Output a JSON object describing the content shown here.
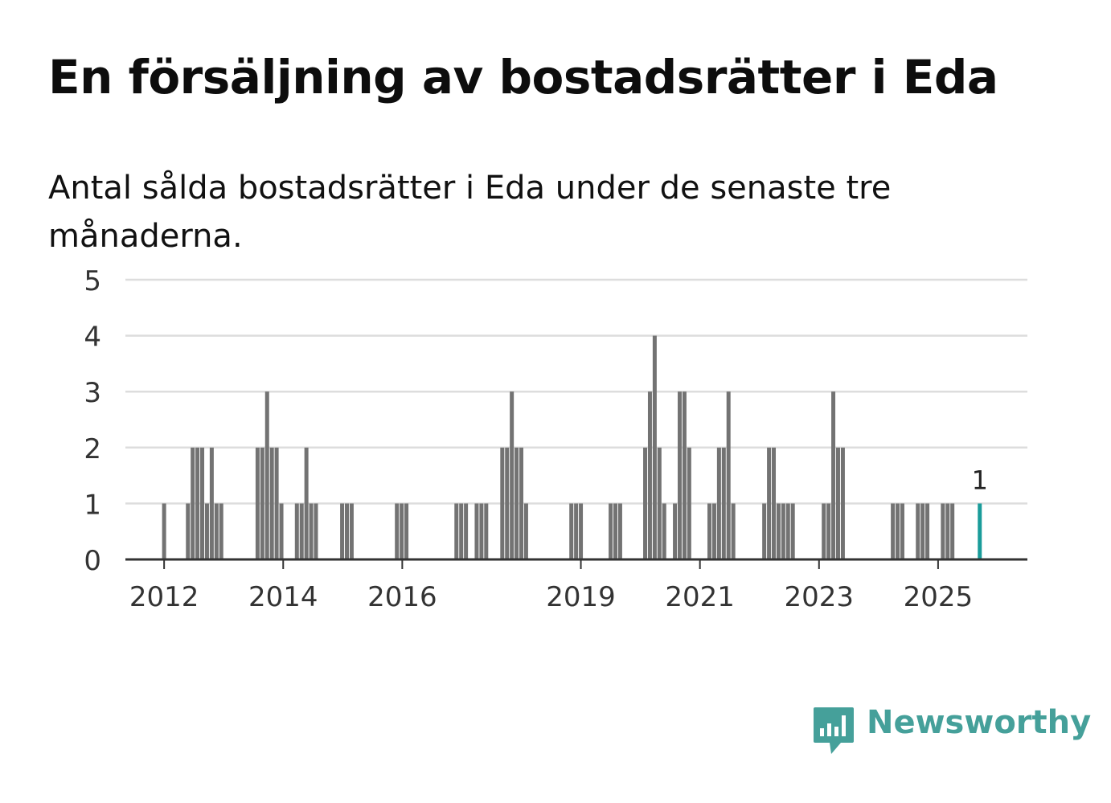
{
  "title": "En försäljning av bostadsrätter i Eda",
  "subtitle": "Antal sålda bostadsrätter i Eda under de senaste tre månaderna.",
  "brand": {
    "name": "Newsworthy",
    "color": "#45a09a",
    "icon": "newsworthy-logo-icon"
  },
  "colors": {
    "bar": "#737373",
    "highlight": "#1a9c9a",
    "grid": "#dddddd",
    "axis": "#333333"
  },
  "chart_data": {
    "type": "bar",
    "title": "En försäljning av bostadsrätter i Eda",
    "subtitle": "Antal sålda bostadsrätter i Eda under de senaste tre månaderna.",
    "xlabel": "",
    "ylabel": "",
    "ylim": [
      0,
      5
    ],
    "yticks": [
      0,
      1,
      2,
      3,
      4,
      5
    ],
    "xlim": [
      2011.35,
      2026.5
    ],
    "xticks": [
      {
        "label": "2012",
        "x": 2012.0
      },
      {
        "label": "2014",
        "x": 2014.0
      },
      {
        "label": "2016",
        "x": 2016.0
      },
      {
        "label": "2019",
        "x": 2019.0
      },
      {
        "label": "2021",
        "x": 2021.0
      },
      {
        "label": "2023",
        "x": 2023.0
      },
      {
        "label": "2025",
        "x": 2025.0
      }
    ],
    "grid": true,
    "series": [
      {
        "name": "Sålda bostadsrätter",
        "points": [
          {
            "x": 2012.0,
            "y": 1
          },
          {
            "x": 2012.4,
            "y": 1
          },
          {
            "x": 2012.48,
            "y": 2
          },
          {
            "x": 2012.56,
            "y": 2
          },
          {
            "x": 2012.64,
            "y": 2
          },
          {
            "x": 2012.72,
            "y": 1
          },
          {
            "x": 2012.8,
            "y": 2
          },
          {
            "x": 2012.88,
            "y": 1
          },
          {
            "x": 2012.96,
            "y": 1
          },
          {
            "x": 2013.57,
            "y": 2
          },
          {
            "x": 2013.65,
            "y": 2
          },
          {
            "x": 2013.73,
            "y": 3
          },
          {
            "x": 2013.81,
            "y": 2
          },
          {
            "x": 2013.89,
            "y": 2
          },
          {
            "x": 2013.97,
            "y": 1
          },
          {
            "x": 2014.23,
            "y": 1
          },
          {
            "x": 2014.31,
            "y": 1
          },
          {
            "x": 2014.39,
            "y": 2
          },
          {
            "x": 2014.47,
            "y": 1
          },
          {
            "x": 2014.55,
            "y": 1
          },
          {
            "x": 2014.99,
            "y": 1
          },
          {
            "x": 2015.07,
            "y": 1
          },
          {
            "x": 2015.15,
            "y": 1
          },
          {
            "x": 2015.91,
            "y": 1
          },
          {
            "x": 2015.99,
            "y": 1
          },
          {
            "x": 2016.07,
            "y": 1
          },
          {
            "x": 2016.91,
            "y": 1
          },
          {
            "x": 2016.99,
            "y": 1
          },
          {
            "x": 2017.07,
            "y": 1
          },
          {
            "x": 2017.25,
            "y": 1
          },
          {
            "x": 2017.33,
            "y": 1
          },
          {
            "x": 2017.41,
            "y": 1
          },
          {
            "x": 2017.68,
            "y": 2
          },
          {
            "x": 2017.76,
            "y": 2
          },
          {
            "x": 2017.84,
            "y": 3
          },
          {
            "x": 2017.92,
            "y": 2
          },
          {
            "x": 2018.0,
            "y": 2
          },
          {
            "x": 2018.08,
            "y": 1
          },
          {
            "x": 2018.84,
            "y": 1
          },
          {
            "x": 2018.92,
            "y": 1
          },
          {
            "x": 2019.0,
            "y": 1
          },
          {
            "x": 2019.5,
            "y": 1
          },
          {
            "x": 2019.58,
            "y": 1
          },
          {
            "x": 2019.66,
            "y": 1
          },
          {
            "x": 2020.08,
            "y": 2
          },
          {
            "x": 2020.16,
            "y": 3
          },
          {
            "x": 2020.24,
            "y": 4
          },
          {
            "x": 2020.32,
            "y": 2
          },
          {
            "x": 2020.4,
            "y": 1
          },
          {
            "x": 2020.58,
            "y": 1
          },
          {
            "x": 2020.66,
            "y": 3
          },
          {
            "x": 2020.74,
            "y": 3
          },
          {
            "x": 2020.82,
            "y": 2
          },
          {
            "x": 2021.16,
            "y": 1
          },
          {
            "x": 2021.24,
            "y": 1
          },
          {
            "x": 2021.32,
            "y": 2
          },
          {
            "x": 2021.4,
            "y": 2
          },
          {
            "x": 2021.48,
            "y": 3
          },
          {
            "x": 2021.56,
            "y": 1
          },
          {
            "x": 2022.08,
            "y": 1
          },
          {
            "x": 2022.16,
            "y": 2
          },
          {
            "x": 2022.24,
            "y": 2
          },
          {
            "x": 2022.32,
            "y": 1
          },
          {
            "x": 2022.4,
            "y": 1
          },
          {
            "x": 2022.48,
            "y": 1
          },
          {
            "x": 2022.56,
            "y": 1
          },
          {
            "x": 2023.08,
            "y": 1
          },
          {
            "x": 2023.16,
            "y": 1
          },
          {
            "x": 2023.24,
            "y": 3
          },
          {
            "x": 2023.32,
            "y": 2
          },
          {
            "x": 2023.4,
            "y": 2
          },
          {
            "x": 2024.24,
            "y": 1
          },
          {
            "x": 2024.32,
            "y": 1
          },
          {
            "x": 2024.4,
            "y": 1
          },
          {
            "x": 2024.66,
            "y": 1
          },
          {
            "x": 2024.74,
            "y": 1
          },
          {
            "x": 2024.82,
            "y": 1
          },
          {
            "x": 2025.08,
            "y": 1
          },
          {
            "x": 2025.16,
            "y": 1
          },
          {
            "x": 2025.24,
            "y": 1
          }
        ]
      },
      {
        "name": "Senaste tre månaderna",
        "highlight": true,
        "points": [
          {
            "x": 2025.7,
            "y": 1,
            "label": "1"
          }
        ]
      }
    ]
  }
}
